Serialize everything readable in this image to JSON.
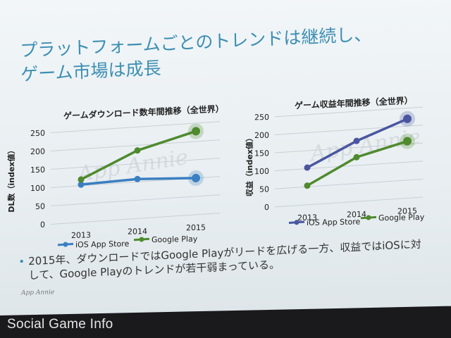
{
  "slide": {
    "title_line1": "プラットフォームごとのトレンドは継続し、",
    "title_line2": "ゲーム市場は成長",
    "bullet_text_line1": "2015年、ダウンロードではGoogle Playがリードを広げる一方、収益ではiOSに対",
    "bullet_text_line2": "して、Google Playのトレンドが若干弱まっている。",
    "bullet_symbol": "•",
    "corner_logo": "App Annie",
    "footer_brand": "Social Game Info",
    "watermark": "App Annie"
  },
  "chart_data": [
    {
      "type": "line",
      "title": "ゲームダウンロード数年間推移（全世界）",
      "xlabel": "",
      "ylabel": "DL数（index値）",
      "categories": [
        "2013",
        "2014",
        "2015"
      ],
      "yticks": [
        "0",
        "50",
        "100",
        "150",
        "200",
        "250"
      ],
      "ylim": [
        0,
        250
      ],
      "grid": true,
      "legend_position": "bottom",
      "series": [
        {
          "name": "iOS App Store",
          "values": [
            103,
            108,
            100
          ],
          "color": "#3a7fc1"
        },
        {
          "name": "Google Play",
          "values": [
            117,
            186,
            228
          ],
          "color": "#4f8a2e"
        }
      ]
    },
    {
      "type": "line",
      "title": "ゲーム収益年間推移（全世界）",
      "xlabel": "",
      "ylabel": "収益（index値）",
      "categories": [
        "2013",
        "2014",
        "2015"
      ],
      "yticks": [
        "0",
        "50",
        "100",
        "150",
        "200",
        "250"
      ],
      "ylim": [
        0,
        250
      ],
      "grid": true,
      "legend_position": "bottom",
      "series": [
        {
          "name": "iOS App Store",
          "values": [
            103,
            168,
            220
          ],
          "color": "#4a56a0"
        },
        {
          "name": "Google Play",
          "values": [
            53,
            123,
            158
          ],
          "color": "#4f8a2e"
        }
      ]
    }
  ]
}
